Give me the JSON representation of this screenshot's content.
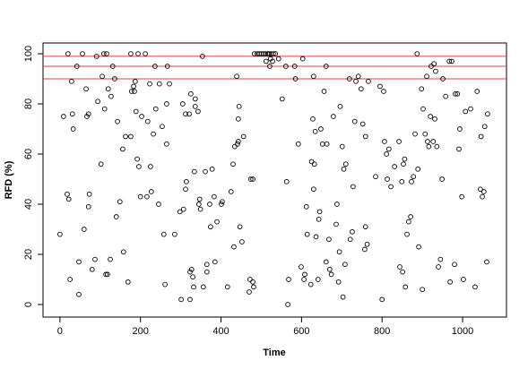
{
  "chart_data": {
    "type": "scatter",
    "xlabel": "Time",
    "ylabel": "RFD (%)",
    "xlim": [
      -42,
      1109
    ],
    "ylim": [
      -5,
      104.3
    ],
    "xticks": [
      0,
      200,
      400,
      600,
      800,
      1000
    ],
    "yticks": [
      0,
      20,
      40,
      60,
      80,
      100
    ],
    "color": "#000000",
    "hlines": [
      90,
      95,
      99
    ],
    "hline_color": "#e04040",
    "x": [
      0,
      9,
      18,
      22,
      25,
      29,
      31,
      33,
      42,
      47,
      47,
      20,
      56,
      60,
      65,
      67,
      71,
      71,
      73,
      80,
      87,
      91,
      94,
      102,
      105,
      109,
      111,
      114,
      116,
      118,
      120,
      125,
      127,
      131,
      136,
      140,
      143,
      149,
      156,
      158,
      163,
      169,
      176,
      176,
      178,
      183,
      185,
      187,
      189,
      192,
      194,
      196,
      200,
      203,
      212,
      216,
      218,
      223,
      225,
      227,
      232,
      236,
      238,
      245,
      247,
      254,
      258,
      261,
      265,
      265,
      267,
      272,
      285,
      298,
      301,
      305,
      307,
      312,
      312,
      314,
      321,
      323,
      323,
      325,
      327,
      330,
      332,
      336,
      336,
      334,
      343,
      345,
      347,
      349,
      354,
      356,
      361,
      365,
      365,
      372,
      374,
      378,
      383,
      385,
      390,
      401,
      403,
      416,
      425,
      430,
      432,
      434,
      439,
      441,
      443,
      443,
      445,
      447,
      452,
      456,
      470,
      472,
      474,
      479,
      479,
      481,
      483,
      490,
      495,
      500,
      505,
      510,
      512,
      515,
      518,
      520,
      523,
      525,
      528,
      530,
      535,
      521,
      543,
      552,
      561,
      563,
      566,
      568,
      583,
      585,
      592,
      599,
      603,
      606,
      608,
      612,
      614,
      623,
      625,
      628,
      630,
      630,
      632,
      634,
      636,
      641,
      643,
      645,
      648,
      652,
      656,
      661,
      661,
      663,
      668,
      670,
      674,
      679,
      686,
      688,
      692,
      694,
      696,
      701,
      703,
      705,
      708,
      710,
      719,
      721,
      726,
      728,
      732,
      735,
      741,
      748,
      752,
      757,
      759,
      759,
      763,
      766,
      784,
      795,
      800,
      804,
      806,
      811,
      813,
      817,
      822,
      831,
      842,
      844,
      849,
      851,
      853,
      856,
      858,
      862,
      866,
      871,
      873,
      878,
      882,
      887,
      889,
      891,
      898,
      900,
      902,
      907,
      911,
      913,
      916,
      920,
      922,
      927,
      929,
      931,
      933,
      936,
      940,
      945,
      949,
      951,
      958,
      967,
      969,
      973,
      980,
      982,
      987,
      991,
      993,
      998,
      1002,
      1007,
      1020,
      1031,
      1036,
      1044,
      1046,
      1049,
      1053,
      1055,
      1060,
      1062
    ],
    "values": [
      28,
      75,
      44,
      42,
      10,
      89,
      76,
      70,
      95,
      17,
      4,
      100,
      100,
      30,
      86,
      75,
      76,
      39,
      44,
      14,
      18,
      99,
      81,
      56,
      91,
      100,
      78,
      12,
      100,
      12,
      86,
      18,
      83,
      95,
      90,
      35,
      73,
      41,
      62,
      21,
      67,
      9,
      100,
      67,
      85,
      87,
      85,
      89,
      77,
      58,
      100,
      55,
      43,
      75,
      100,
      43,
      73,
      88,
      55,
      45,
      68,
      95,
      78,
      40,
      88,
      71,
      28,
      8,
      80,
      64,
      95,
      88,
      28,
      37,
      2,
      80,
      38,
      76,
      46,
      49,
      76,
      13,
      2,
      84,
      14,
      11,
      7,
      82,
      79,
      53,
      77,
      40,
      42,
      38,
      99,
      7,
      53,
      16,
      13,
      40,
      31,
      54,
      43,
      17,
      33,
      40,
      41,
      7,
      45,
      56,
      23,
      63,
      91,
      64,
      74,
      65,
      79,
      31,
      25,
      67,
      5,
      10,
      50,
      50,
      9,
      7,
      100,
      100,
      100,
      100,
      100,
      100,
      97,
      100,
      100,
      100,
      98,
      100,
      97,
      100,
      100,
      95,
      98,
      82,
      95,
      49,
      0,
      10,
      95,
      90,
      64,
      15,
      98,
      10,
      12,
      39,
      28,
      8,
      57,
      74,
      46,
      91,
      56,
      69,
      27,
      10,
      34,
      37,
      70,
      64,
      85,
      95,
      17,
      64,
      26,
      14,
      12,
      75,
      32,
      40,
      9,
      21,
      79,
      63,
      3,
      54,
      16,
      56,
      90,
      26,
      29,
      47,
      73,
      89,
      91,
      86,
      72,
      22,
      67,
      31,
      24,
      89,
      51,
      87,
      2,
      85,
      65,
      60,
      50,
      62,
      47,
      55,
      65,
      15,
      49,
      13,
      56,
      58,
      7,
      28,
      33,
      35,
      49,
      51,
      68,
      100,
      54,
      23,
      86,
      6,
      78,
      68,
      91,
      65,
      63,
      75,
      95,
      65,
      96,
      74,
      93,
      63,
      15,
      18,
      50,
      90,
      83,
      97,
      9,
      97,
      16,
      84,
      84,
      62,
      70,
      43,
      10,
      77,
      78,
      7,
      85,
      46,
      67,
      43,
      45,
      71,
      17,
      76
    ]
  }
}
